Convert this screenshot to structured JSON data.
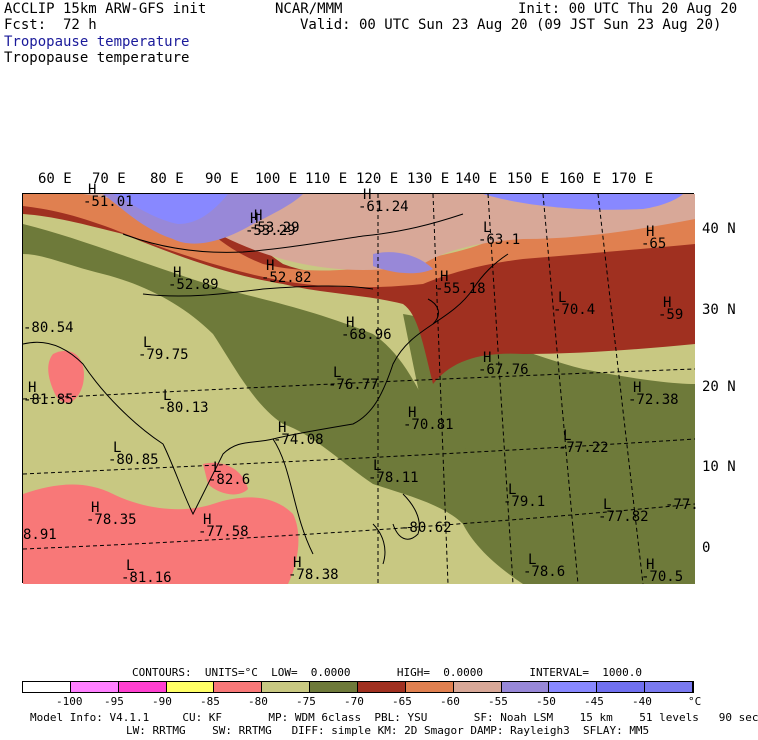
{
  "header": {
    "model": "ACCLIP 15km ARW-GFS init",
    "center": "NCAR/MMM",
    "init": "Init: 00 UTC Thu 20 Aug 20",
    "fcst_label": "Fcst:",
    "fcst_value": "72 h",
    "valid": "Valid: 00 UTC Sun 23 Aug 20 (09 JST Sun 23 Aug 20)",
    "field_title_1": "Tropopause temperature",
    "field_title_2": "Tropopause temperature"
  },
  "longitude_labels": [
    "60 E",
    "70 E",
    "80 E",
    "90 E",
    "100 E",
    "110 E",
    "120 E",
    "130 E",
    "140 E",
    "150 E",
    "160 E",
    "170 E"
  ],
  "latitude_labels": [
    "40 N",
    "30 N",
    "20 N",
    "10 N",
    "0"
  ],
  "colors": {
    "c_lt_m100": "#ffffff",
    "c_m100_m95": "#ff80ff",
    "c_m95_m90": "#ff40d0",
    "c_m90_m85": "#ffff66",
    "c_m85_m80": "#f87878",
    "c_m80_m75": "#c8c882",
    "c_m75_m70": "#6e7a3a",
    "c_m70_m65": "#a03020",
    "c_m65_m60": "#e08050",
    "c_m60_m55": "#d8a898",
    "c_m55_m50": "#9888d8",
    "c_m50_m45": "#8888ff",
    "c_m45_m40": "#7070f0",
    "c_gt_m40": "#7a7af0"
  },
  "map_labels": [
    {
      "kind": "H",
      "value": "-51.01"
    },
    {
      "kind": "H",
      "value": "-53.29"
    },
    {
      "kind": "H",
      "value": "-61.24"
    },
    {
      "kind": "H",
      "value": "-53.29"
    },
    {
      "kind": "L",
      "value": "-63.1"
    },
    {
      "kind": "H",
      "value": "-65"
    },
    {
      "kind": "H",
      "value": "-52.89"
    },
    {
      "kind": "H",
      "value": "-52.82"
    },
    {
      "kind": "H",
      "value": "-55.18"
    },
    {
      "kind": "L",
      "value": "-70.4"
    },
    {
      "kind": "H",
      "value": "-59"
    },
    {
      "kind": "",
      "value": "-80.54"
    },
    {
      "kind": "H",
      "value": "-68.96"
    },
    {
      "kind": "L",
      "value": "-79.75"
    },
    {
      "kind": "H",
      "value": "-67.76"
    },
    {
      "kind": "L",
      "value": "-76.77"
    },
    {
      "kind": "H",
      "value": "-72.38"
    },
    {
      "kind": "H",
      "value": "-81.85"
    },
    {
      "kind": "L",
      "value": "-80.13"
    },
    {
      "kind": "H",
      "value": "-70.81"
    },
    {
      "kind": "H",
      "value": "-74.08"
    },
    {
      "kind": "L",
      "value": "-77.22"
    },
    {
      "kind": "L",
      "value": "-80.85"
    },
    {
      "kind": "L",
      "value": "-82.6"
    },
    {
      "kind": "L",
      "value": "-78.11"
    },
    {
      "kind": "H",
      "value": "-78.35"
    },
    {
      "kind": "H",
      "value": "-77.58"
    },
    {
      "kind": "L",
      "value": "-79.1"
    },
    {
      "kind": "L",
      "value": "-77.82"
    },
    {
      "kind": "",
      "value": "-77."
    },
    {
      "kind": "",
      "value": "-80.62"
    },
    {
      "kind": "",
      "value": "8.91"
    },
    {
      "kind": "H",
      "value": "-78.38"
    },
    {
      "kind": "L",
      "value": "-81.16"
    },
    {
      "kind": "L",
      "value": "-78.6"
    },
    {
      "kind": "H",
      "value": "-70.5"
    }
  ],
  "legend": {
    "contours": "CONTOURS:  UNITS=°C  LOW=  0.0000       HIGH=  0.0000       INTERVAL=  1000.0",
    "ticks": [
      "-100",
      "-95",
      "-90",
      "-85",
      "-80",
      "-75",
      "-70",
      "-65",
      "-60",
      "-55",
      "-50",
      "-45",
      "-40"
    ],
    "unit": "°C"
  },
  "footer": {
    "line1": "Model Info: V4.1.1     CU: KF       MP: WDM 6class  PBL: YSU       SF: Noah LSM    15 km    51 levels   90 sec",
    "line2": "LW: RRTMG    SW: RRTMG   DIFF: simple KM: 2D Smagor DAMP: Rayleigh3  SFLAY: MM5"
  }
}
